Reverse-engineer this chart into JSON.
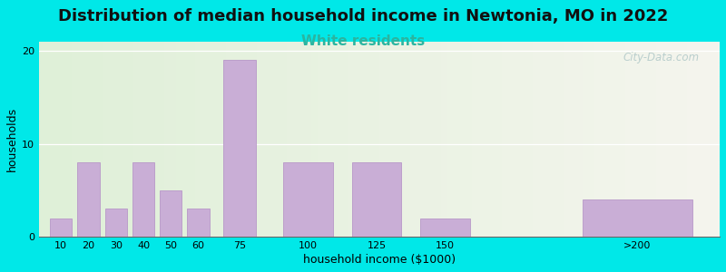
{
  "title": "Distribution of median household income in Newtonia, MO in 2022",
  "subtitle": "White residents",
  "xlabel": "household income ($1000)",
  "ylabel": "households",
  "bar_color": "#c9aed6",
  "bar_edgecolor": "#b898c8",
  "categories": [
    "10",
    "20",
    "30",
    "40",
    "50",
    "60",
    "75",
    "100",
    "125",
    "150",
    ">200"
  ],
  "x_positions": [
    10,
    20,
    30,
    40,
    50,
    60,
    75,
    100,
    125,
    150,
    220
  ],
  "bar_widths": [
    8,
    8,
    8,
    8,
    8,
    8,
    12,
    18,
    18,
    18,
    40
  ],
  "values": [
    2,
    8,
    3,
    8,
    5,
    3,
    19,
    8,
    8,
    2,
    4
  ],
  "ylim": [
    0,
    21
  ],
  "yticks": [
    0,
    10,
    20
  ],
  "xlim": [
    2,
    250
  ],
  "xtick_positions": [
    10,
    20,
    30,
    40,
    50,
    60,
    75,
    100,
    125,
    150,
    220
  ],
  "xtick_labels": [
    "10",
    "20",
    "30",
    "40",
    "50",
    "60",
    "75",
    "100",
    "125",
    "150",
    ">200"
  ],
  "background_outer": "#00e8e8",
  "title_fontsize": 13,
  "subtitle_fontsize": 11,
  "subtitle_color": "#2ab5a0",
  "watermark_text": "City-Data.com",
  "watermark_color": "#b0c8c8",
  "axis_label_fontsize": 9,
  "tick_fontsize": 8
}
